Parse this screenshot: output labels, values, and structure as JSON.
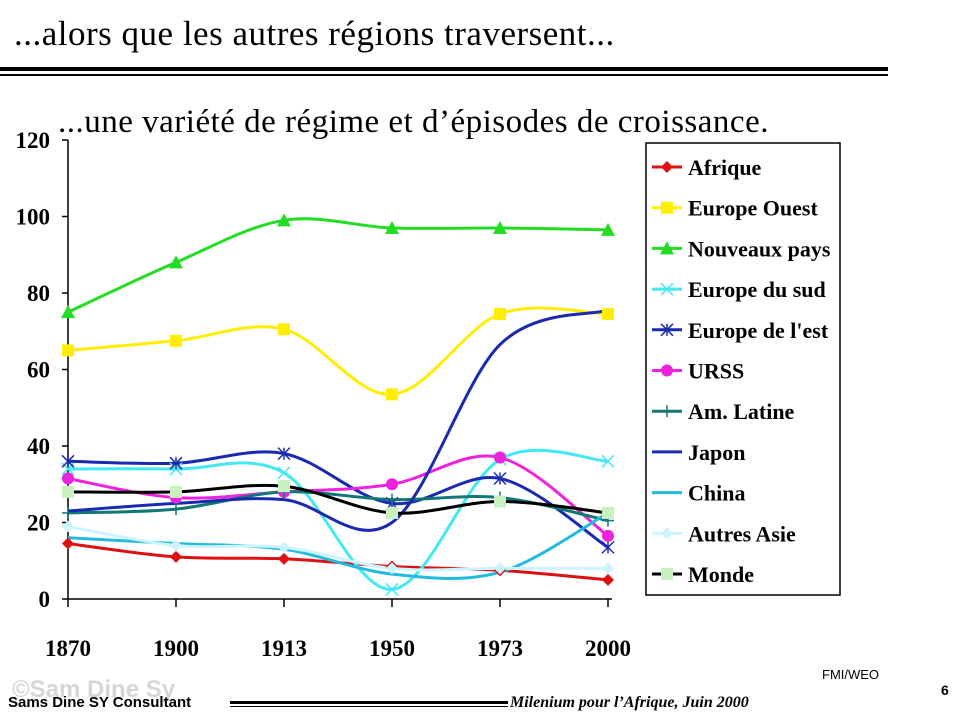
{
  "slide": {
    "title": "...alors que les autres régions traversent...",
    "subtitle": "...une variété de régime et d’épisodes de croissance.",
    "source": "FMI/WEO",
    "page_number": "6",
    "footer_left": "Sams Dine SY Consultant",
    "footer_right": "Milenium pour l’Afrique, Juin 2000",
    "watermark": "©Sam Dine Sy"
  },
  "chart_data": {
    "type": "line",
    "title": "",
    "xlabel": "",
    "ylabel": "",
    "x": [
      "1870",
      "1900",
      "1913",
      "1950",
      "1973",
      "2000"
    ],
    "ylim": [
      0,
      120
    ],
    "yticks": [
      0,
      20,
      40,
      60,
      80,
      100,
      120
    ],
    "legend_position": "right",
    "series": [
      {
        "name": "Afrique",
        "values": [
          14.5,
          11,
          10.5,
          8.5,
          7.5,
          5
        ],
        "color": "#dd1111",
        "marker": "diamond"
      },
      {
        "name": "Europe Ouest",
        "values": [
          65,
          67.5,
          70.5,
          53.5,
          74.5,
          74.5
        ],
        "color": "#ffee00",
        "marker": "square"
      },
      {
        "name": "Nouveaux pays",
        "values": [
          75,
          88,
          99,
          97,
          97,
          96.5
        ],
        "color": "#22dd22",
        "marker": "triangle"
      },
      {
        "name": "Europe du sud",
        "values": [
          34,
          34,
          33,
          2.5,
          36.5,
          36
        ],
        "color": "#44e8f0",
        "marker": "x"
      },
      {
        "name": "Europe de l'est",
        "values": [
          36,
          35.5,
          38,
          25,
          31.5,
          13.5
        ],
        "color": "#1a2ab0",
        "marker": "asterisk"
      },
      {
        "name": "URSS",
        "values": [
          31.5,
          26.5,
          28,
          30,
          37,
          16.5
        ],
        "color": "#ee22dd",
        "marker": "circle"
      },
      {
        "name": "Am. Latine",
        "values": [
          22.5,
          23.5,
          28,
          26,
          26.5,
          20.5
        ],
        "color": "#117777",
        "marker": "plus"
      },
      {
        "name": "Japon",
        "values": [
          23,
          25,
          26,
          20,
          66.5,
          75.5
        ],
        "color": "#1a2ab0",
        "marker": "none"
      },
      {
        "name": "China",
        "values": [
          16,
          14.5,
          13,
          6.5,
          7,
          22.5
        ],
        "color": "#22bbdd",
        "marker": "none"
      },
      {
        "name": "Autres Asie",
        "values": [
          19,
          14,
          13.5,
          8,
          8,
          8
        ],
        "color": "#ccf4ff",
        "marker": "diamond"
      },
      {
        "name": "Monde",
        "values": [
          28,
          28,
          29.5,
          22.5,
          25.5,
          22.5
        ],
        "color": "#000000",
        "marker": "square-light"
      }
    ]
  }
}
